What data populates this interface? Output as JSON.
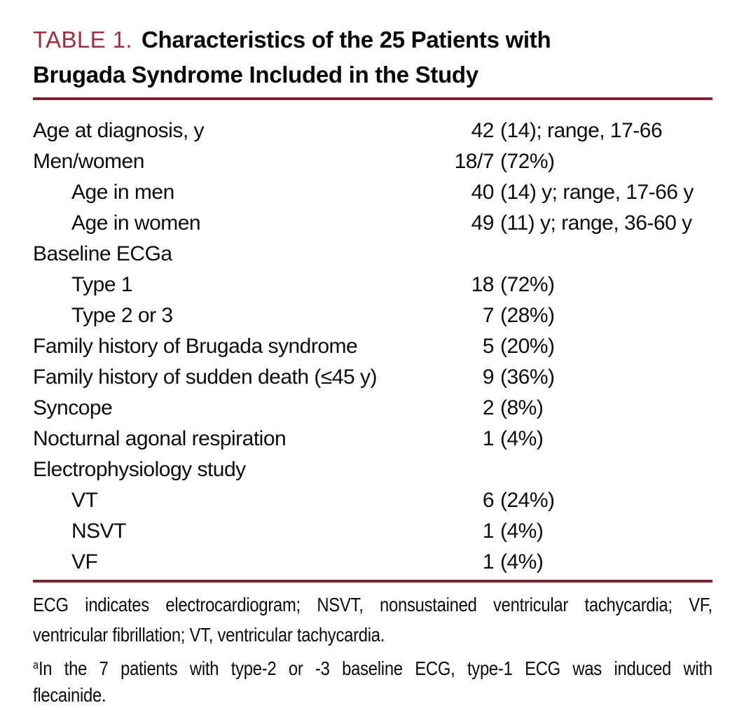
{
  "colors": {
    "accent": "#a12e3f",
    "rule": "#7d2231"
  },
  "table": {
    "label": "TABLE 1.",
    "title_line1": "Characteristics of the 25 Patients with",
    "title_line2": "Brugada Syndrome Included in the Study",
    "rows": [
      {
        "label": "Age at diagnosis, y",
        "num": "42",
        "rest": "(14); range, 17-66"
      },
      {
        "label": "Men/women",
        "num": "18/7",
        "rest": "(72%)"
      },
      {
        "label": "Age in men",
        "num": "40",
        "rest": "(14) y; range, 17-66 y"
      },
      {
        "label": "Age in women",
        "num": "49",
        "rest": "(11) y; range, 36-60 y"
      },
      {
        "label": "Baseline ECGa",
        "num": "",
        "rest": ""
      },
      {
        "label": "Type 1",
        "num": "18",
        "rest": "(72%)"
      },
      {
        "label": "Type 2 or 3",
        "num": "7",
        "rest": "(28%)"
      },
      {
        "label": "Family history of Brugada syndrome",
        "num": "5",
        "rest": "(20%)"
      },
      {
        "label": "Family history of sudden death (≤45 y)",
        "num": "9",
        "rest": "(36%)"
      },
      {
        "label": "Syncope",
        "num": "2",
        "rest": "(8%)"
      },
      {
        "label": "Nocturnal agonal respiration",
        "num": "1",
        "rest": "(4%)"
      },
      {
        "label": "Electrophysiology study",
        "num": "",
        "rest": ""
      },
      {
        "label": "VT",
        "num": "6",
        "rest": "(24%)"
      },
      {
        "label": "NSVT",
        "num": "1",
        "rest": "(4%)"
      },
      {
        "label": "VF",
        "num": "1",
        "rest": "(4%)"
      }
    ],
    "footnote_abbrev_line1": "ECG indicates electrocardiogram; NSVT, nonsustained ventricular tachycardia; VF,",
    "footnote_abbrev_line2": "ventricular fibrillation; VT, ventricular tachycardia.",
    "footnote_a_marker": "a",
    "footnote_a_line1": "In the 7 patients with type-2 or -3 baseline ECG, type-1 ECG was induced with",
    "footnote_a_line2": "flecainide."
  }
}
